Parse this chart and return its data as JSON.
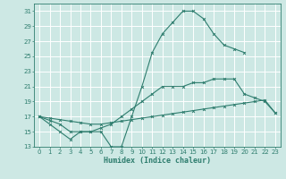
{
  "xlabel": "Humidex (Indice chaleur)",
  "bg_color": "#cde8e4",
  "grid_color": "#ffffff",
  "line_color": "#2e7d6e",
  "line1_x": [
    0,
    1,
    2,
    3,
    4,
    5,
    6,
    7,
    8,
    9,
    10,
    11,
    12,
    13,
    14,
    15,
    16,
    17,
    18,
    19,
    20
  ],
  "line1_y": [
    17,
    16,
    15,
    14,
    15,
    15,
    15,
    13,
    13,
    17,
    21,
    25.5,
    28,
    29.5,
    31,
    31,
    30,
    28,
    26.5,
    26,
    25.5
  ],
  "line2_x": [
    0,
    1,
    2,
    3,
    4,
    5,
    6,
    7,
    8,
    9,
    10,
    11,
    12,
    13,
    14,
    15,
    16,
    17,
    18,
    19,
    20,
    21,
    22,
    23
  ],
  "line2_y": [
    17,
    16.8,
    16.6,
    16.4,
    16.2,
    16.0,
    16.0,
    16.2,
    16.4,
    16.6,
    16.8,
    17.0,
    17.2,
    17.4,
    17.6,
    17.8,
    18.0,
    18.2,
    18.4,
    18.6,
    18.8,
    19.0,
    19.2,
    17.5
  ],
  "line3_x": [
    0,
    1,
    2,
    3,
    4,
    5,
    6,
    7,
    8,
    9,
    10,
    11,
    12,
    13,
    14,
    15,
    16,
    17,
    18,
    19,
    20,
    21,
    22,
    23
  ],
  "line3_y": [
    17,
    16.5,
    16,
    15,
    15,
    15,
    15.5,
    16,
    17,
    18,
    19,
    20,
    21,
    21,
    21,
    21.5,
    21.5,
    22,
    22,
    22,
    20,
    19.5,
    19,
    17.5
  ],
  "ylim": [
    13,
    32
  ],
  "xlim": [
    -0.5,
    23.5
  ],
  "yticks": [
    13,
    15,
    17,
    19,
    21,
    23,
    25,
    27,
    29,
    31
  ],
  "xticks": [
    0,
    1,
    2,
    3,
    4,
    5,
    6,
    7,
    8,
    9,
    10,
    11,
    12,
    13,
    14,
    15,
    16,
    17,
    18,
    19,
    20,
    21,
    22,
    23
  ],
  "xlabel_fontsize": 6,
  "tick_fontsize": 5,
  "linewidth": 0.8,
  "markersize": 2.0,
  "figwidth": 3.2,
  "figheight": 2.0,
  "dpi": 100
}
